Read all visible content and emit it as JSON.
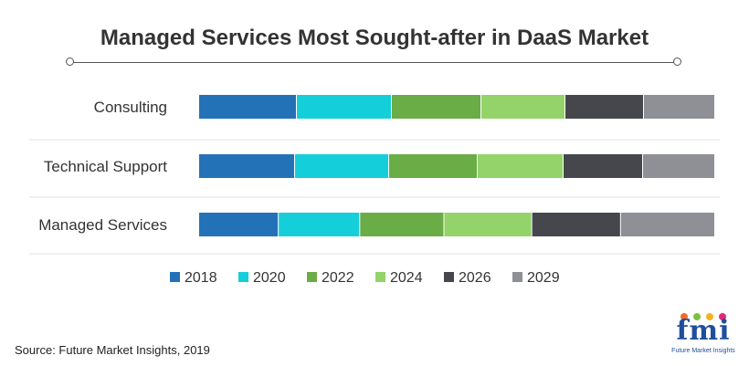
{
  "chart_data": {
    "type": "bar",
    "orientation": "horizontal-stacked",
    "title": "Managed Services Most Sought-after in DaaS Market",
    "categories": [
      "Consulting",
      "Technical Support",
      "Managed Services"
    ],
    "series": [
      {
        "name": "2018",
        "color": "#2372b8",
        "values": [
          107,
          105,
          87
        ]
      },
      {
        "name": "2020",
        "color": "#14cfd9",
        "values": [
          104,
          103,
          89
        ]
      },
      {
        "name": "2022",
        "color": "#6aac45",
        "values": [
          98,
          97,
          92
        ]
      },
      {
        "name": "2024",
        "color": "#93d36a",
        "values": [
          92,
          94,
          96
        ]
      },
      {
        "name": "2026",
        "color": "#45474d",
        "values": [
          86,
          87,
          97
        ]
      },
      {
        "name": "2029",
        "color": "#8f9095",
        "values": [
          78,
          79,
          103
        ]
      }
    ],
    "legend_position": "bottom",
    "grid": false
  },
  "footer": {
    "source": "Source: Future Market Insights, 2019",
    "logo_text": "fmi",
    "logo_caption": "Future Market Insights"
  }
}
